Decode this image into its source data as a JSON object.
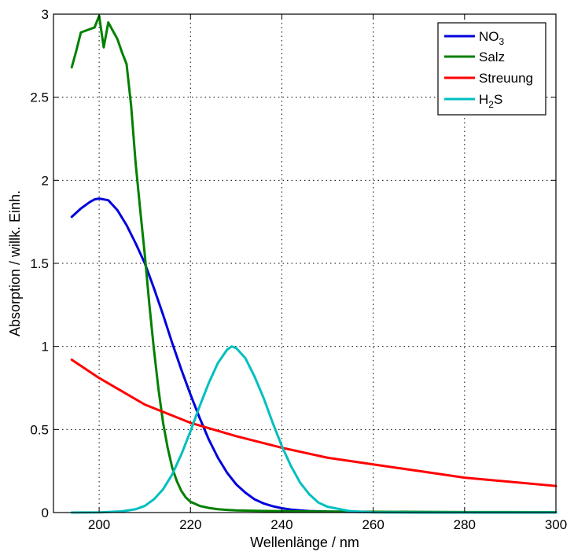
{
  "chart_data": {
    "type": "line",
    "title": "",
    "xlabel": "Wellenlänge / nm",
    "ylabel": "Absorption / willk. Einh.",
    "xlim": [
      190,
      300
    ],
    "ylim": [
      0,
      3
    ],
    "xticks": [
      200,
      220,
      240,
      260,
      280,
      300
    ],
    "yticks": [
      0,
      0.5,
      1,
      1.5,
      2,
      2.5,
      3
    ],
    "xtick_labels": [
      "200",
      "220",
      "240",
      "260",
      "280",
      "300"
    ],
    "ytick_labels": [
      "0",
      "0.5",
      "1",
      "1.5",
      "2",
      "2.5",
      "3"
    ],
    "grid": true,
    "legend_position": "top-right",
    "series": [
      {
        "name": "NO3",
        "legend_main": "NO",
        "legend_sub": "3",
        "legend_after": "",
        "color": "#0000dd",
        "x": [
          194,
          196,
          198,
          199,
          200,
          202,
          204,
          206,
          208,
          210,
          212,
          214,
          216,
          218,
          220,
          222,
          224,
          226,
          228,
          230,
          232,
          234,
          236,
          238,
          240,
          242,
          244,
          246,
          250,
          255,
          260,
          270,
          280,
          290,
          300
        ],
        "y": [
          1.78,
          1.83,
          1.87,
          1.885,
          1.89,
          1.88,
          1.82,
          1.73,
          1.62,
          1.5,
          1.35,
          1.19,
          1.02,
          0.86,
          0.71,
          0.57,
          0.44,
          0.33,
          0.24,
          0.17,
          0.12,
          0.08,
          0.055,
          0.038,
          0.026,
          0.018,
          0.013,
          0.009,
          0.006,
          0.004,
          0.003,
          0.002,
          0.001,
          0.001,
          0.001
        ]
      },
      {
        "name": "Salz",
        "legend_main": "Salz",
        "legend_sub": "",
        "legend_after": "",
        "color": "#008000",
        "x": [
          194,
          195,
          196,
          197,
          198,
          199,
          200,
          201,
          202,
          203,
          204,
          205,
          206,
          207,
          208,
          209,
          210,
          211,
          212,
          213,
          214,
          215,
          216,
          217,
          218,
          219,
          220,
          222,
          224,
          226,
          228,
          230,
          235,
          240,
          250,
          260,
          270,
          280,
          290,
          300
        ],
        "y": [
          2.68,
          2.78,
          2.89,
          2.9,
          2.91,
          2.92,
          2.99,
          2.8,
          2.95,
          2.9,
          2.85,
          2.77,
          2.7,
          2.45,
          2.1,
          1.82,
          1.55,
          1.25,
          0.98,
          0.74,
          0.54,
          0.39,
          0.27,
          0.19,
          0.13,
          0.09,
          0.065,
          0.04,
          0.028,
          0.02,
          0.016,
          0.013,
          0.01,
          0.008,
          0.006,
          0.005,
          0.004,
          0.003,
          0.003,
          0.002
        ]
      },
      {
        "name": "Streuung",
        "legend_main": "Streuung",
        "legend_sub": "",
        "legend_after": "",
        "color": "#ff0000",
        "x": [
          194,
          200,
          210,
          220,
          230,
          240,
          250,
          260,
          270,
          280,
          290,
          300
        ],
        "y": [
          0.92,
          0.81,
          0.65,
          0.54,
          0.46,
          0.39,
          0.33,
          0.29,
          0.25,
          0.21,
          0.185,
          0.16
        ]
      },
      {
        "name": "H2S",
        "legend_main": "H",
        "legend_sub": "2",
        "legend_after": "S",
        "color": "#00bfbf",
        "x": [
          194,
          200,
          205,
          208,
          210,
          212,
          214,
          216,
          218,
          220,
          222,
          224,
          226,
          228,
          229,
          230,
          232,
          234,
          236,
          238,
          240,
          242,
          244,
          246,
          248,
          250,
          255,
          260,
          270,
          280,
          300
        ],
        "y": [
          0.0,
          0.001,
          0.007,
          0.02,
          0.04,
          0.08,
          0.14,
          0.23,
          0.35,
          0.49,
          0.64,
          0.78,
          0.9,
          0.98,
          1.0,
          0.99,
          0.93,
          0.82,
          0.69,
          0.54,
          0.4,
          0.28,
          0.18,
          0.11,
          0.06,
          0.035,
          0.008,
          0.001,
          0.0,
          0.0,
          0.0
        ]
      }
    ]
  }
}
